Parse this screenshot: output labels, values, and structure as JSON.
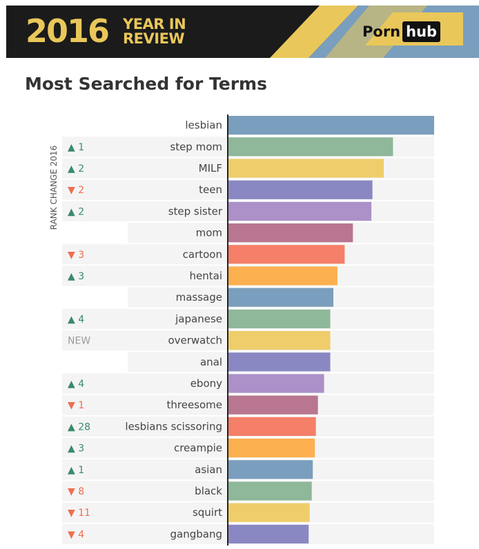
{
  "banner": {
    "year": "2016",
    "line1": "YEAR IN",
    "line2": "REVIEW",
    "brand_prefix": "Porn",
    "brand_suffix": "hub",
    "colors": {
      "dark": "#1b1b1b",
      "yellow": "#e9c75a",
      "blue": "#7a9ebd"
    }
  },
  "chart_data": {
    "type": "bar",
    "orientation": "horizontal",
    "title": "Most Searched for Terms",
    "rank_axis_label": "RANK CHANGE 2016",
    "xlim": [
      0,
      100
    ],
    "categories": [
      "lesbian",
      "step mom",
      "MILF",
      "teen",
      "step sister",
      "mom",
      "cartoon",
      "hentai",
      "massage",
      "japanese",
      "overwatch",
      "anal",
      "ebony",
      "threesome",
      "lesbians scissoring",
      "creampie",
      "asian",
      "black",
      "squirt",
      "gangbang"
    ],
    "values": [
      100,
      80,
      75.5,
      70,
      69.5,
      60.5,
      56.5,
      53,
      51,
      49.5,
      49.5,
      49.5,
      46.5,
      43.5,
      42.5,
      42,
      41,
      40.5,
      39.5,
      39
    ],
    "rank_change": [
      "",
      "▲ 1",
      "▲ 2",
      "▼ 2",
      "▲ 2",
      "",
      "▼ 3",
      "▲ 3",
      "",
      "▲ 4",
      "NEW",
      "",
      "▲ 4",
      "▼ 1",
      "▲ 28",
      "▲ 3",
      "▲ 1",
      "▼ 8",
      "▼ 11",
      "▼ 4"
    ],
    "rank_direction": [
      "none",
      "up",
      "up",
      "down",
      "up",
      "none",
      "down",
      "up",
      "none",
      "up",
      "new",
      "none",
      "up",
      "down",
      "up",
      "up",
      "up",
      "down",
      "down",
      "down"
    ],
    "colors": [
      "#7a9ebd",
      "#8fb79a",
      "#efcd6a",
      "#8a88c2",
      "#ac90c8",
      "#b87690",
      "#f57f68",
      "#fdb050"
    ],
    "direction_colors": {
      "up": "#3a8a6a",
      "down": "#ef6e50",
      "new": "#9a9a9a"
    }
  }
}
